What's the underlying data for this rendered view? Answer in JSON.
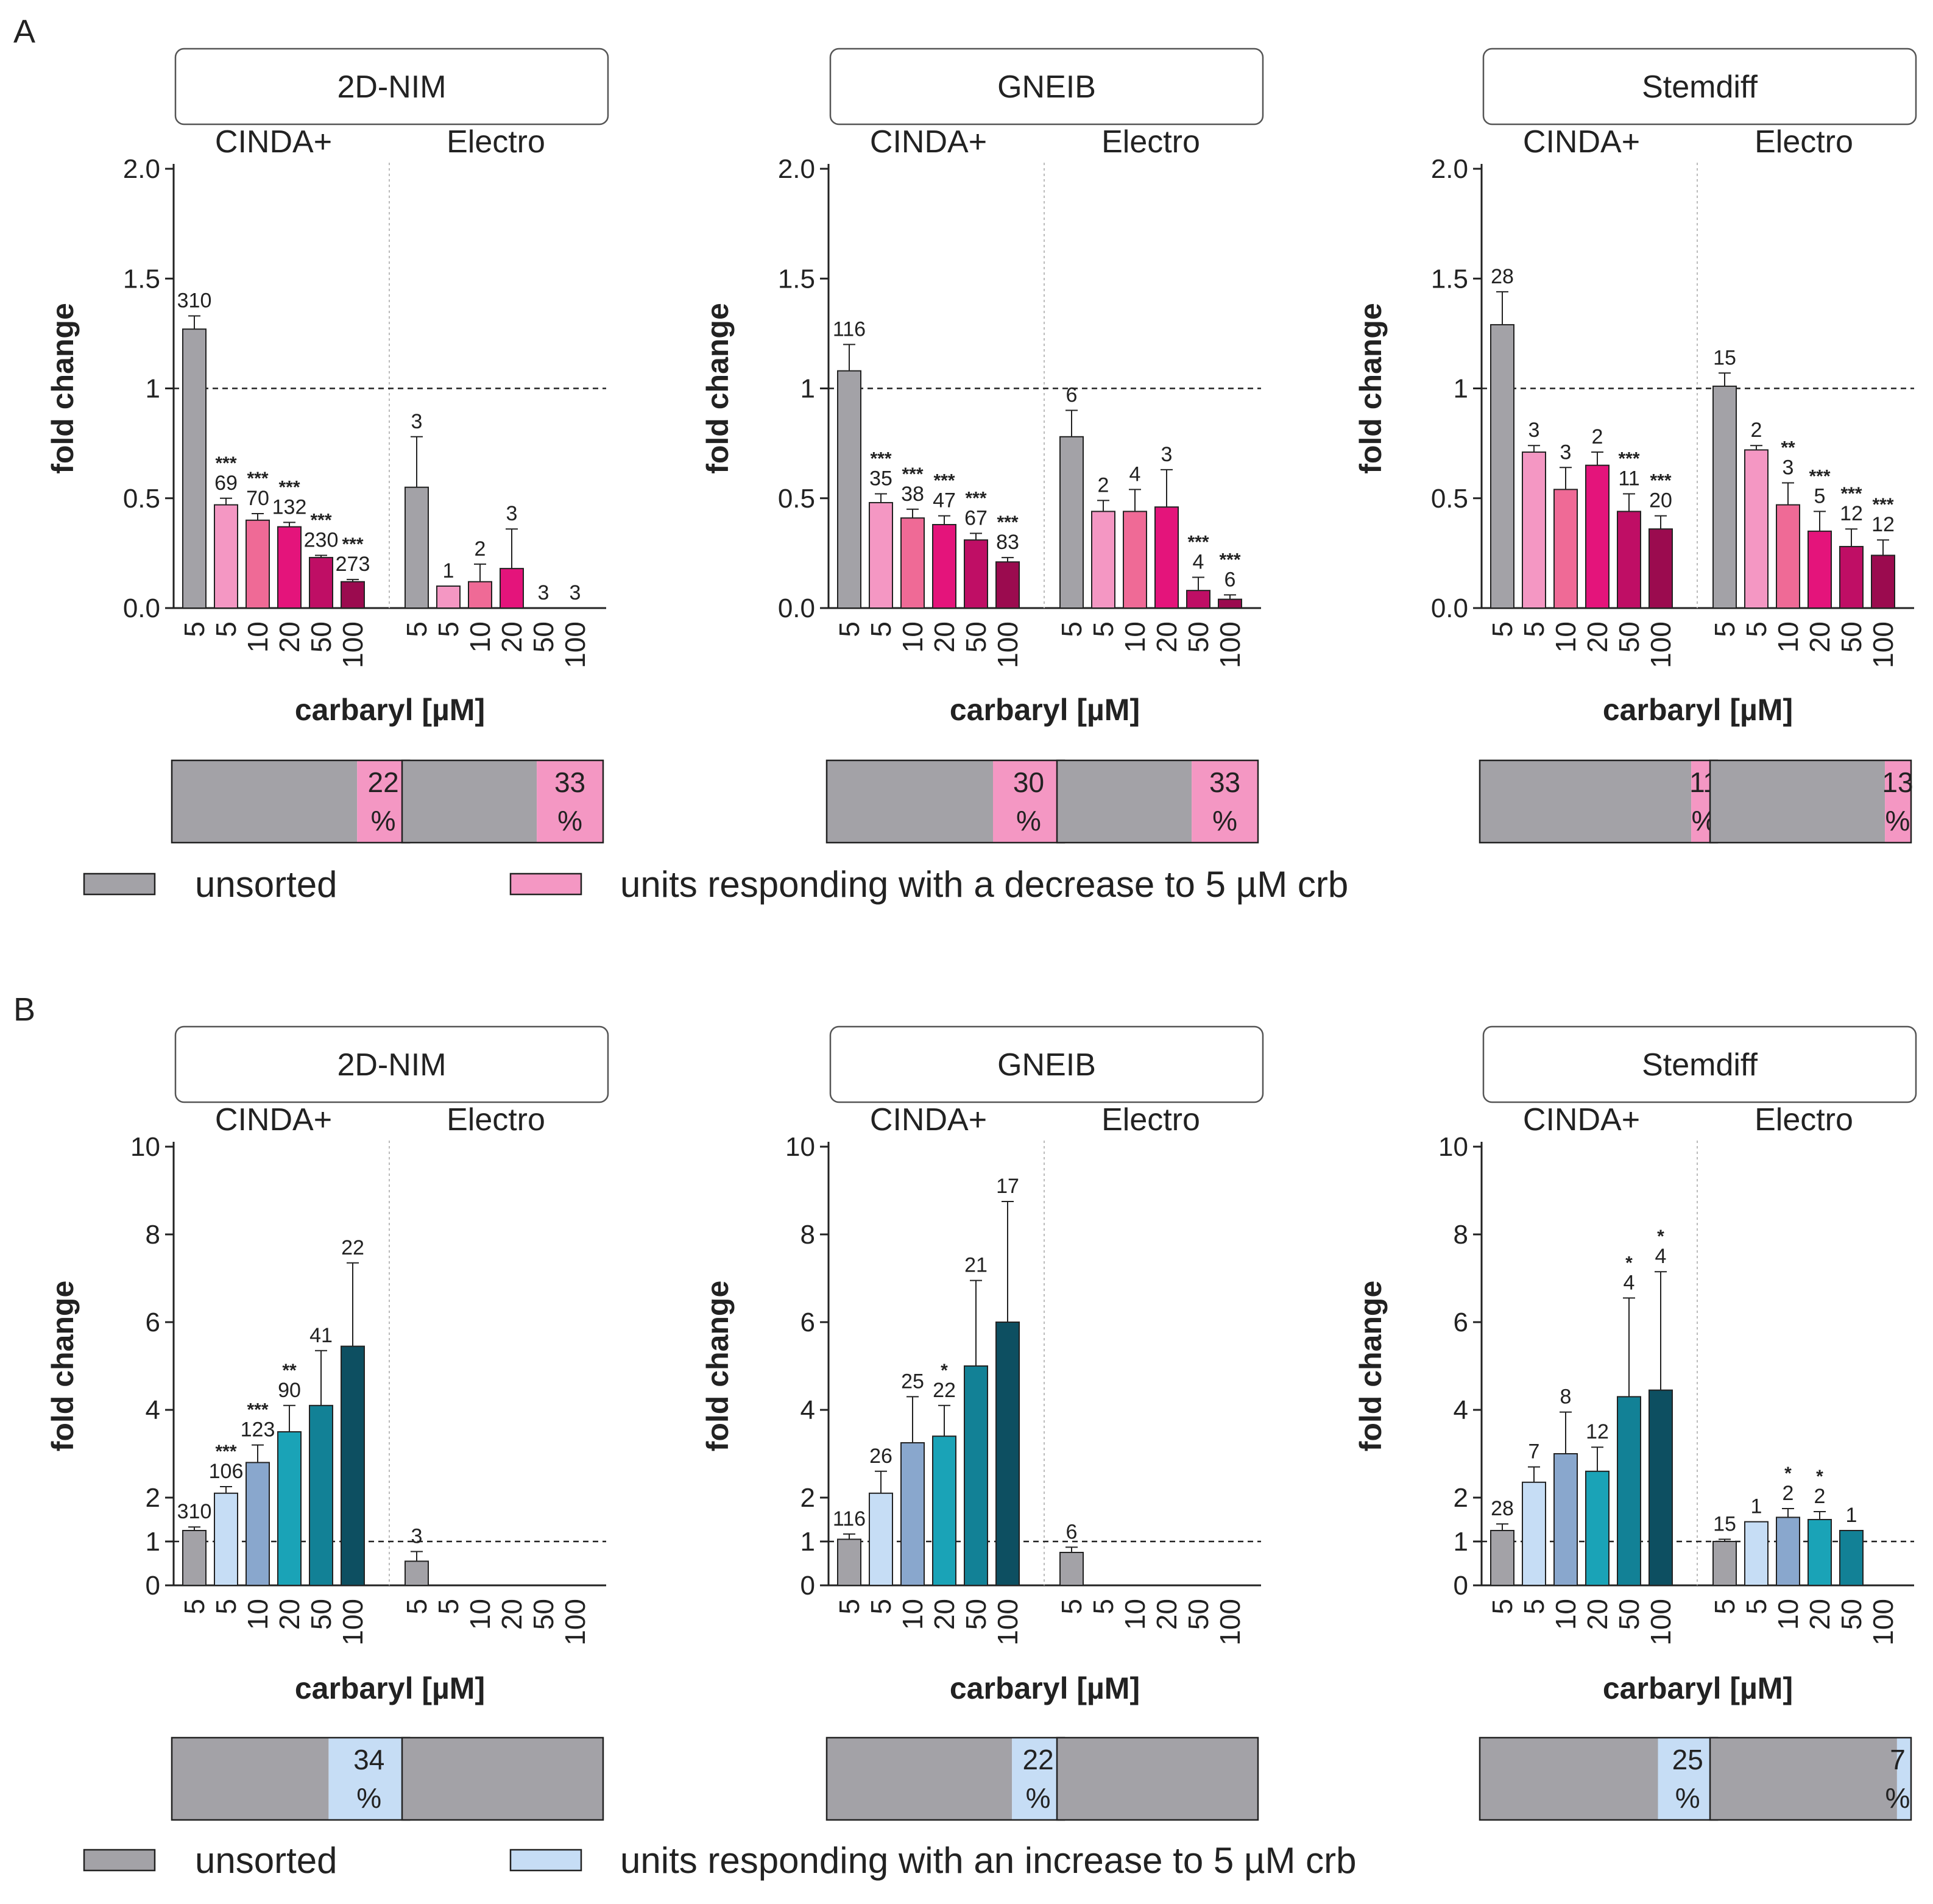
{
  "panel_labels": [
    "A",
    "B"
  ],
  "legends": [
    {
      "items": [
        {
          "color": "#a3a2a7",
          "label": "unsorted"
        },
        {
          "color": "#f497c3",
          "label": "units responding with a decrease to 5 µM crb"
        }
      ]
    },
    {
      "items": [
        {
          "color": "#a3a2a7",
          "label": "unsorted"
        },
        {
          "color": "#c6ddf5",
          "label": "units responding with an increase to 5 µM crb"
        }
      ]
    }
  ],
  "chart_data": [
    {
      "type": "bar",
      "panel": "A",
      "title": "2D-NIM",
      "xlabel": "carbaryl [µM]",
      "ylabel": "fold change",
      "ylim": [
        0,
        2
      ],
      "yticks": [
        "0.0",
        "0.5",
        "1",
        "1.5",
        "2.0"
      ],
      "yticks_values": [
        0,
        0.5,
        1,
        1.5,
        2
      ],
      "reference_line": 1,
      "groups": [
        {
          "name": "CINDA+",
          "categories": [
            "5",
            "5",
            "10",
            "20",
            "50",
            "100"
          ],
          "values": [
            1.27,
            0.47,
            0.4,
            0.37,
            0.23,
            0.12
          ],
          "errors": [
            0.06,
            0.03,
            0.03,
            0.02,
            0.01,
            0.01
          ],
          "n": [
            "310",
            "69",
            "70",
            "132",
            "230",
            "273"
          ],
          "sig": [
            "",
            "***",
            "***",
            "***",
            "***",
            "***"
          ],
          "colors": [
            "#a3a2a7",
            "#f497c3",
            "#ef6a96",
            "#e4147b",
            "#bf0e65",
            "#9b0b4f"
          ],
          "percent": "22",
          "percent_fraction": 0.22
        },
        {
          "name": "Electro",
          "categories": [
            "5",
            "5",
            "10",
            "20",
            "50",
            "100"
          ],
          "values": [
            0.55,
            0.1,
            0.12,
            0.18,
            null,
            null
          ],
          "errors": [
            0.23,
            0,
            0.08,
            0.18,
            null,
            null
          ],
          "n": [
            "3",
            "1",
            "2",
            "3",
            "3",
            "3"
          ],
          "sig": [
            "",
            "",
            "",
            "",
            "",
            ""
          ],
          "colors": [
            "#a3a2a7",
            "#f497c3",
            "#ef6a96",
            "#e4147b",
            "#bf0e65",
            "#9b0b4f"
          ],
          "percent": "33",
          "percent_fraction": 0.33
        }
      ]
    },
    {
      "type": "bar",
      "panel": "A",
      "title": "GNEIB",
      "xlabel": "carbaryl [µM]",
      "ylabel": "fold change",
      "ylim": [
        0,
        2
      ],
      "yticks": [
        "0.0",
        "0.5",
        "1",
        "1.5",
        "2.0"
      ],
      "yticks_values": [
        0,
        0.5,
        1,
        1.5,
        2
      ],
      "reference_line": 1,
      "groups": [
        {
          "name": "CINDA+",
          "categories": [
            "5",
            "5",
            "10",
            "20",
            "50",
            "100"
          ],
          "values": [
            1.08,
            0.48,
            0.41,
            0.38,
            0.31,
            0.21
          ],
          "errors": [
            0.12,
            0.04,
            0.04,
            0.04,
            0.03,
            0.02
          ],
          "n": [
            "116",
            "35",
            "38",
            "47",
            "67",
            "83"
          ],
          "sig": [
            "",
            "***",
            "***",
            "***",
            "***",
            "***"
          ],
          "colors": [
            "#a3a2a7",
            "#f497c3",
            "#ef6a96",
            "#e4147b",
            "#bf0e65",
            "#9b0b4f"
          ],
          "percent": "30",
          "percent_fraction": 0.3
        },
        {
          "name": "Electro",
          "categories": [
            "5",
            "5",
            "10",
            "20",
            "50",
            "100"
          ],
          "values": [
            0.78,
            0.44,
            0.44,
            0.46,
            0.08,
            0.04
          ],
          "errors": [
            0.12,
            0.05,
            0.1,
            0.17,
            0.06,
            0.02
          ],
          "n": [
            "6",
            "2",
            "4",
            "3",
            "4",
            "6"
          ],
          "sig": [
            "",
            "",
            "",
            "",
            "***",
            "***"
          ],
          "colors": [
            "#a3a2a7",
            "#f497c3",
            "#ef6a96",
            "#e4147b",
            "#bf0e65",
            "#9b0b4f"
          ],
          "percent": "33",
          "percent_fraction": 0.33
        }
      ]
    },
    {
      "type": "bar",
      "panel": "A",
      "title": "Stemdiff",
      "xlabel": "carbaryl [µM]",
      "ylabel": "fold change",
      "ylim": [
        0,
        2
      ],
      "yticks": [
        "0.0",
        "0.5",
        "1",
        "1.5",
        "2.0"
      ],
      "yticks_values": [
        0,
        0.5,
        1,
        1.5,
        2
      ],
      "reference_line": 1,
      "groups": [
        {
          "name": "CINDA+",
          "categories": [
            "5",
            "5",
            "10",
            "20",
            "50",
            "100"
          ],
          "values": [
            1.29,
            0.71,
            0.54,
            0.65,
            0.44,
            0.36
          ],
          "errors": [
            0.15,
            0.03,
            0.1,
            0.06,
            0.08,
            0.06
          ],
          "n": [
            "28",
            "3",
            "3",
            "2",
            "11",
            "20"
          ],
          "sig": [
            "",
            "",
            "",
            "",
            "***",
            "***"
          ],
          "colors": [
            "#a3a2a7",
            "#f497c3",
            "#ef6a96",
            "#e4147b",
            "#bf0e65",
            "#9b0b4f"
          ],
          "percent": "11",
          "percent_fraction": 0.11
        },
        {
          "name": "Electro",
          "categories": [
            "5",
            "5",
            "10",
            "20",
            "50",
            "100"
          ],
          "values": [
            1.01,
            0.72,
            0.47,
            0.35,
            0.28,
            0.24
          ],
          "errors": [
            0.06,
            0.02,
            0.1,
            0.09,
            0.08,
            0.07
          ],
          "n": [
            "15",
            "2",
            "3",
            "5",
            "12",
            "12"
          ],
          "sig": [
            "",
            "",
            "**",
            "***",
            "***",
            "***"
          ],
          "colors": [
            "#a3a2a7",
            "#f497c3",
            "#ef6a96",
            "#e4147b",
            "#bf0e65",
            "#9b0b4f"
          ],
          "percent": "13",
          "percent_fraction": 0.13
        }
      ]
    },
    {
      "type": "bar",
      "panel": "B",
      "title": "2D-NIM",
      "xlabel": "carbaryl [µM]",
      "ylabel": "fold change",
      "ylim": [
        0,
        10
      ],
      "yticks": [
        "0",
        "1",
        "2",
        "4",
        "6",
        "8",
        "10"
      ],
      "yticks_values": [
        0,
        1,
        2,
        4,
        6,
        8,
        10
      ],
      "reference_line": 1,
      "groups": [
        {
          "name": "CINDA+",
          "categories": [
            "5",
            "5",
            "10",
            "20",
            "50",
            "100"
          ],
          "values": [
            1.25,
            2.1,
            2.8,
            3.5,
            4.1,
            5.45
          ],
          "errors": [
            0.08,
            0.15,
            0.4,
            0.6,
            1.25,
            1.9
          ],
          "n": [
            "310",
            "106",
            "123",
            "90",
            "41",
            "22"
          ],
          "sig": [
            "",
            "***",
            "***",
            "**",
            "",
            ""
          ],
          "colors": [
            "#a3a2a7",
            "#c6ddf5",
            "#89a7cd",
            "#1aa3b7",
            "#128196",
            "#0d4f61"
          ],
          "percent": "34",
          "percent_fraction": 0.34
        },
        {
          "name": "Electro",
          "categories": [
            "5",
            "5",
            "10",
            "20",
            "50",
            "100"
          ],
          "values": [
            0.55,
            null,
            null,
            null,
            null,
            null
          ],
          "errors": [
            0.22,
            null,
            null,
            null,
            null,
            null
          ],
          "n": [
            "3",
            "",
            "",
            "",
            "",
            ""
          ],
          "sig": [
            "",
            "",
            "",
            "",
            "",
            ""
          ],
          "colors": [
            "#a3a2a7",
            "#c6ddf5",
            "#89a7cd",
            "#1aa3b7",
            "#128196",
            "#0d4f61"
          ],
          "percent": "",
          "percent_fraction": 0
        }
      ]
    },
    {
      "type": "bar",
      "panel": "B",
      "title": "GNEIB",
      "xlabel": "carbaryl [µM]",
      "ylabel": "fold change",
      "ylim": [
        0,
        10
      ],
      "yticks": [
        "0",
        "1",
        "2",
        "4",
        "6",
        "8",
        "10"
      ],
      "yticks_values": [
        0,
        1,
        2,
        4,
        6,
        8,
        10
      ],
      "reference_line": 1,
      "groups": [
        {
          "name": "CINDA+",
          "categories": [
            "5",
            "5",
            "10",
            "20",
            "50",
            "100"
          ],
          "values": [
            1.05,
            2.1,
            3.25,
            3.4,
            5.0,
            6.0
          ],
          "errors": [
            0.12,
            0.5,
            1.05,
            0.7,
            1.95,
            2.75
          ],
          "n": [
            "116",
            "26",
            "25",
            "22",
            "21",
            "17"
          ],
          "sig": [
            "",
            "",
            "",
            "*",
            "",
            ""
          ],
          "colors": [
            "#a3a2a7",
            "#c6ddf5",
            "#89a7cd",
            "#1aa3b7",
            "#128196",
            "#0d4f61"
          ],
          "percent": "22",
          "percent_fraction": 0.22
        },
        {
          "name": "Electro",
          "categories": [
            "5",
            "5",
            "10",
            "20",
            "50",
            "100"
          ],
          "values": [
            0.75,
            null,
            null,
            null,
            null,
            null
          ],
          "errors": [
            0.12,
            null,
            null,
            null,
            null,
            null
          ],
          "n": [
            "6",
            "",
            "",
            "",
            "",
            ""
          ],
          "sig": [
            "",
            "",
            "",
            "",
            "",
            ""
          ],
          "colors": [
            "#a3a2a7",
            "#c6ddf5",
            "#89a7cd",
            "#1aa3b7",
            "#128196",
            "#0d4f61"
          ],
          "percent": "",
          "percent_fraction": 0
        }
      ]
    },
    {
      "type": "bar",
      "panel": "B",
      "title": "Stemdiff",
      "xlabel": "carbaryl [µM]",
      "ylabel": "fold change",
      "ylim": [
        0,
        10
      ],
      "yticks": [
        "0",
        "1",
        "2",
        "4",
        "6",
        "8",
        "10"
      ],
      "yticks_values": [
        0,
        1,
        2,
        4,
        6,
        8,
        10
      ],
      "reference_line": 1,
      "groups": [
        {
          "name": "CINDA+",
          "categories": [
            "5",
            "5",
            "10",
            "20",
            "50",
            "100"
          ],
          "values": [
            1.25,
            2.35,
            3.0,
            2.6,
            4.3,
            4.45
          ],
          "errors": [
            0.15,
            0.35,
            0.95,
            0.55,
            2.25,
            2.7
          ],
          "n": [
            "28",
            "7",
            "8",
            "12",
            "4",
            "4"
          ],
          "sig": [
            "",
            "",
            "",
            "",
            "*",
            "*"
          ],
          "colors": [
            "#a3a2a7",
            "#c6ddf5",
            "#89a7cd",
            "#1aa3b7",
            "#128196",
            "#0d4f61"
          ],
          "percent": "25",
          "percent_fraction": 0.25
        },
        {
          "name": "Electro",
          "categories": [
            "5",
            "5",
            "10",
            "20",
            "50",
            "100"
          ],
          "values": [
            1.0,
            1.45,
            1.55,
            1.5,
            1.25,
            null
          ],
          "errors": [
            0.05,
            0,
            0.2,
            0.18,
            0,
            null
          ],
          "n": [
            "15",
            "1",
            "2",
            "2",
            "1",
            ""
          ],
          "sig": [
            "",
            "",
            "*",
            "*",
            "",
            ""
          ],
          "colors": [
            "#a3a2a7",
            "#c6ddf5",
            "#89a7cd",
            "#1aa3b7",
            "#128196",
            "#0d4f61"
          ],
          "percent": "7",
          "percent_fraction": 0.07
        }
      ]
    }
  ]
}
